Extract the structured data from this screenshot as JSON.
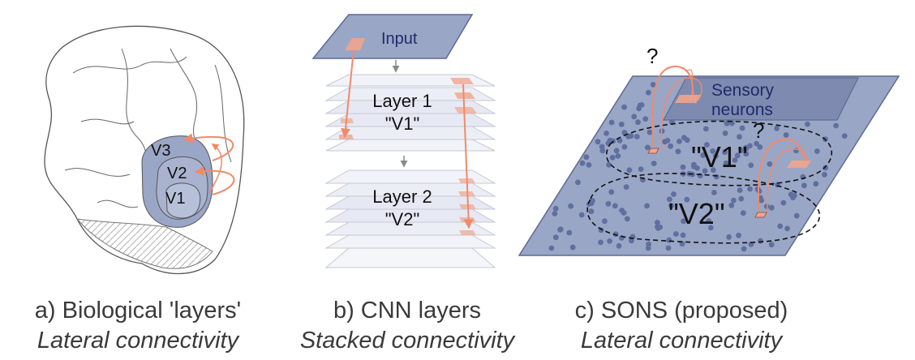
{
  "panel_a": {
    "region_labels": {
      "v3": "V3",
      "v2": "V2",
      "v1": "V1"
    },
    "caption_title": "a) Biological 'layers'",
    "caption_subtitle": "Lateral connectivity"
  },
  "panel_b": {
    "input_label": "Input",
    "layer1_title": "Layer 1",
    "layer1_sub": "\"V1\"",
    "layer2_title": "Layer 2",
    "layer2_sub": "\"V2\"",
    "caption_title": "b) CNN layers",
    "caption_subtitle": "Stacked connectivity"
  },
  "panel_c": {
    "sensory_label_1": "Sensory",
    "sensory_label_2": "neurons",
    "question_1": "?",
    "question_2": "?",
    "area1_label": "\"V1\"",
    "area2_label": "\"V2\"",
    "caption_title": "c) SONS (proposed)",
    "caption_subtitle": "Lateral connectivity"
  },
  "colors": {
    "slate_fill": "#9aa6c6",
    "slate_stroke": "#5d6a92",
    "arrow": "#f08a6a",
    "label_navy": "#1f2a6b",
    "dot": "#5f6f9e"
  }
}
